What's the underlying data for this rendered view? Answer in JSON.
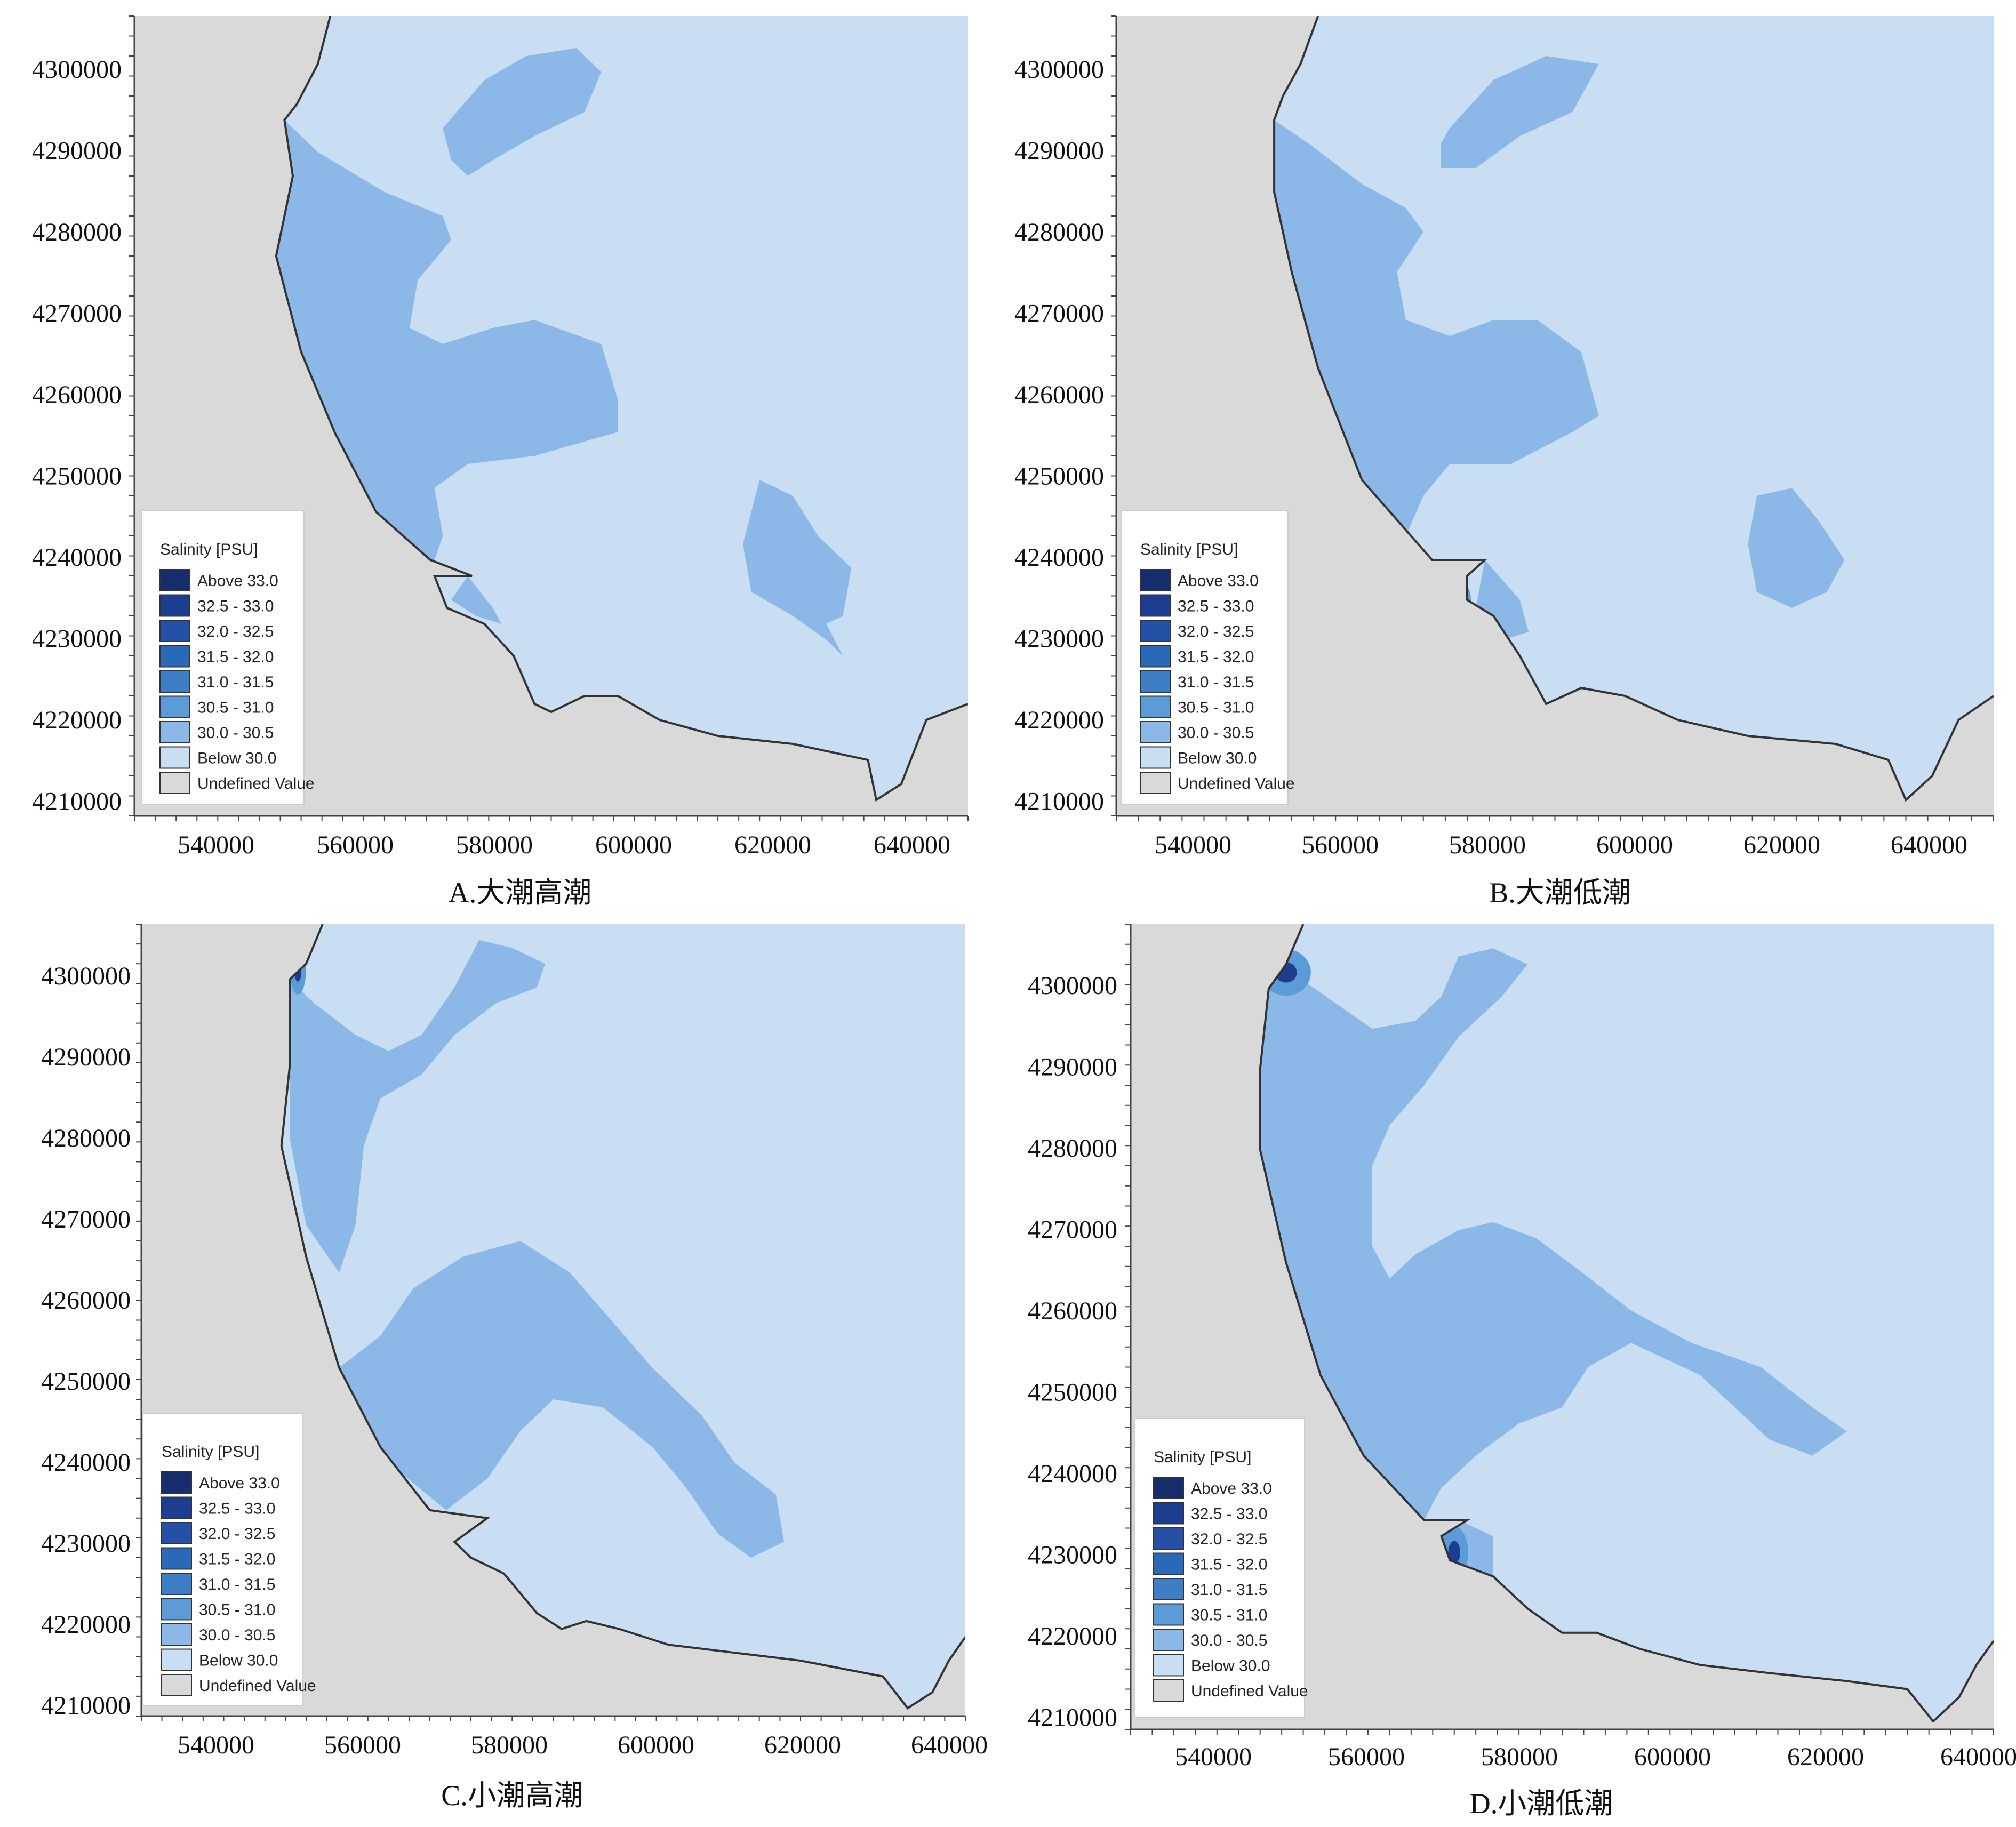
{
  "colors": {
    "land": "#d9d9d9",
    "sea_below30": "#c9def3",
    "sea_30_305": "#8bb8e6",
    "sea_305_31": "#5b9bd8",
    "sea_31_315": "#3d7ec7",
    "sea_315_32": "#2a69b8",
    "sea_32_325": "#2450a6",
    "sea_325_33": "#1d3d91",
    "sea_above33": "#172d6e",
    "coast": "#333333"
  },
  "axes": {
    "x_ticks": [
      "540000",
      "560000",
      "580000",
      "600000",
      "620000",
      "640000"
    ],
    "y_ticks": [
      "4300000",
      "4290000",
      "4280000",
      "4270000",
      "4260000",
      "4250000",
      "4240000",
      "4230000",
      "4220000",
      "4210000"
    ],
    "x_extra_tick_c": "640000"
  },
  "legend": {
    "title": "Salinity [PSU]",
    "items": [
      "Above 33.0",
      "32.5 - 33.0",
      "32.0 - 32.5",
      "31.5 - 32.0",
      "31.0 - 31.5",
      "30.5 - 31.0",
      "30.0 - 30.5",
      "Below 30.0",
      "Undefined Value"
    ]
  },
  "panels": [
    {
      "id": "A",
      "caption": "A.大潮高潮"
    },
    {
      "id": "B",
      "caption": "B.大潮低潮"
    },
    {
      "id": "C",
      "caption": "C.小潮高潮"
    },
    {
      "id": "D",
      "caption": "D.小潮低潮"
    }
  ]
}
